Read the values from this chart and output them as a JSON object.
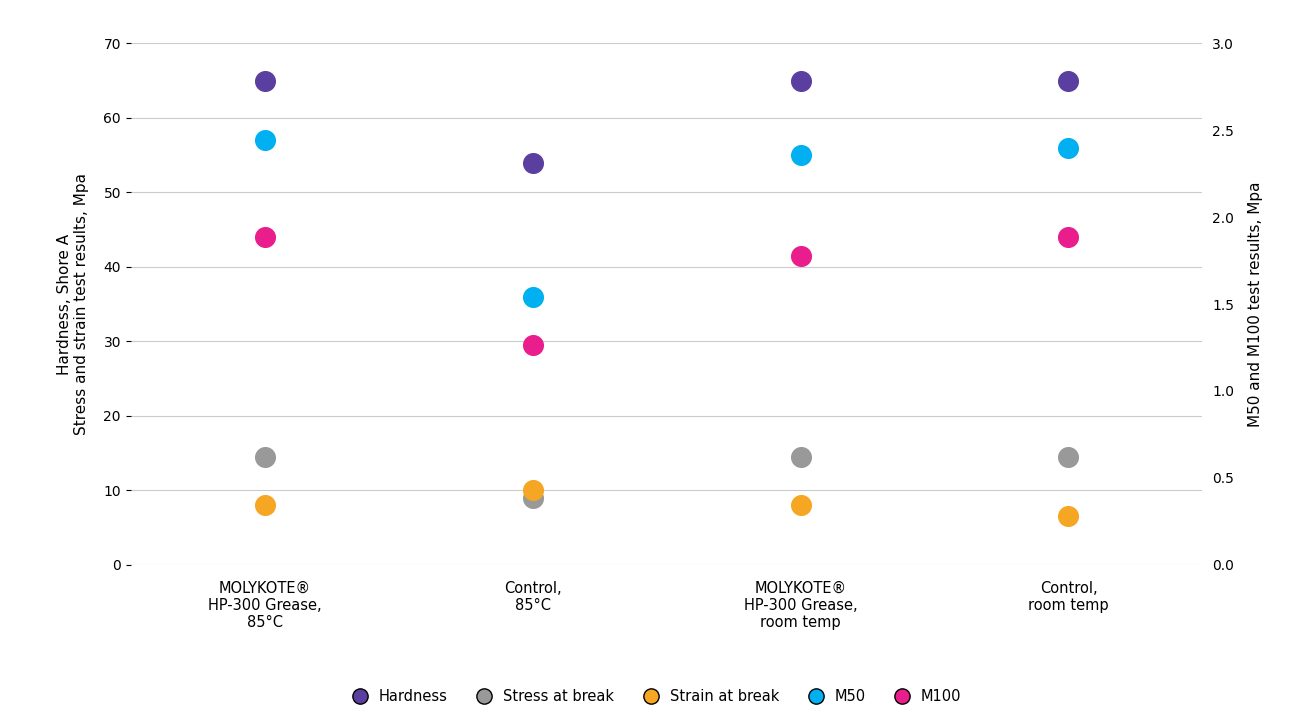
{
  "categories": [
    "MOLYKOTE®\nHP-300 Grease,\n85°C",
    "Control,\n85°C",
    "MOLYKOTE®\nHP-300 Grease,\nroom temp",
    "Control,\nroom temp"
  ],
  "series": {
    "Hardness": {
      "values": [
        65,
        54,
        65,
        65
      ],
      "color": "#5b3fa0"
    },
    "Stress at break": {
      "values": [
        14.5,
        9,
        14.5,
        14.5
      ],
      "color": "#999999"
    },
    "Strain at break": {
      "values": [
        8,
        10,
        8,
        6.5
      ],
      "color": "#f5a623"
    },
    "M50": {
      "values": [
        57,
        36,
        55,
        56
      ],
      "color": "#00b0f0"
    },
    "M100": {
      "values": [
        44,
        29.5,
        41.5,
        44
      ],
      "color": "#e91e8c"
    }
  },
  "ylim_left": [
    0,
    70
  ],
  "ylim_right": [
    0,
    3
  ],
  "yticks_left": [
    0,
    10,
    20,
    30,
    40,
    50,
    60,
    70
  ],
  "yticks_right": [
    0,
    0.5,
    1.0,
    1.5,
    2.0,
    2.5,
    3.0
  ],
  "ylabel_left": "Hardness, Shore A\nStress and strain test results, Mpa",
  "ylabel_right": "M50 and M100 test results, Mpa",
  "marker_size": 200,
  "background_color": "#ffffff",
  "grid_color": "#cccccc",
  "legend_order": [
    "Hardness",
    "Stress at break",
    "Strain at break",
    "M50",
    "M100"
  ],
  "figsize": [
    13.07,
    7.24
  ],
  "dpi": 100
}
